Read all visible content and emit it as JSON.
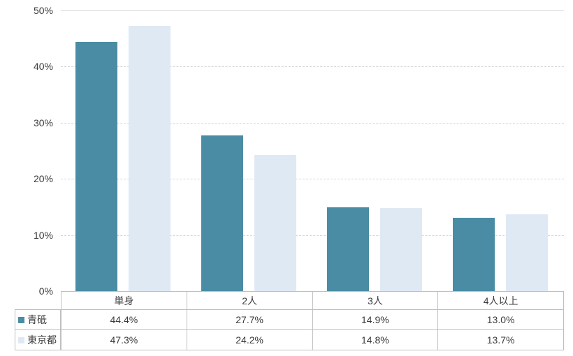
{
  "chart_data": {
    "type": "bar",
    "title": "",
    "xlabel": "",
    "ylabel": "",
    "categories": [
      "単身",
      "2人",
      "3人",
      "4人以上"
    ],
    "series": [
      {
        "name": "青砥",
        "color": "#4a8ca4",
        "values": [
          44.4,
          27.7,
          14.9,
          13.0
        ]
      },
      {
        "name": "東京都",
        "color": "#dfe9f4",
        "values": [
          47.3,
          24.2,
          14.8,
          13.7
        ]
      }
    ],
    "value_labels": {
      "青砥": [
        "44.4%",
        "27.7%",
        "14.9%",
        "13.0%"
      ],
      "東京都": [
        "47.3%",
        "24.2%",
        "14.8%",
        "13.7%"
      ]
    },
    "ylim": [
      0,
      50
    ],
    "ytick_step": 10,
    "yticks": [
      "0%",
      "10%",
      "20%",
      "30%",
      "40%",
      "50%"
    ],
    "grid": "horizontal-dashed",
    "legend_position": "table-left",
    "colors": {
      "grid": "#d6d6d6",
      "table_border": "#bfbfbf",
      "text": "#3b3b3b",
      "background": "#ffffff"
    }
  }
}
